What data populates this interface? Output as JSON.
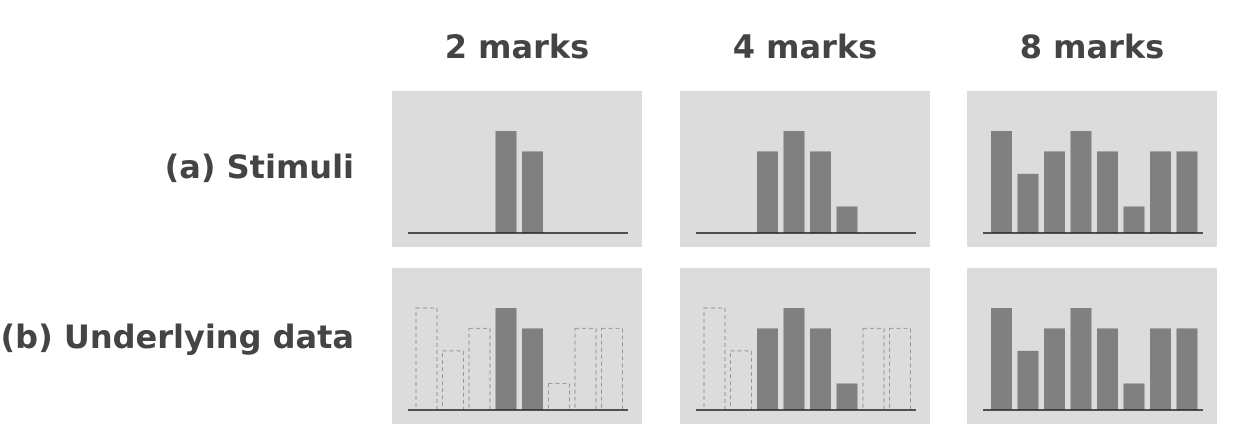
{
  "column_headers": [
    "2 marks",
    "4 marks",
    "8 marks"
  ],
  "row_labels": {
    "stimuli": "(a) Stimuli",
    "underlying": "(b) Underlying data"
  },
  "colors": {
    "panel_bg": "#dcdcdc",
    "bar_fill": "#808080",
    "hidden_bar_stroke": "#999999",
    "baseline": "#222222"
  },
  "underlying_data": [
    5,
    2.9,
    4,
    5,
    4,
    1.3,
    4,
    4
  ],
  "panels": {
    "stimuli": [
      {
        "visible": [
          3,
          4
        ]
      },
      {
        "visible": [
          2,
          3,
          4,
          5
        ]
      },
      {
        "visible": [
          0,
          1,
          2,
          3,
          4,
          5,
          6,
          7
        ]
      }
    ],
    "underlying": [
      {
        "visible": [
          3,
          4
        ]
      },
      {
        "visible": [
          2,
          3,
          4,
          5
        ]
      },
      {
        "visible": [
          0,
          1,
          2,
          3,
          4,
          5,
          6,
          7
        ]
      }
    ]
  }
}
